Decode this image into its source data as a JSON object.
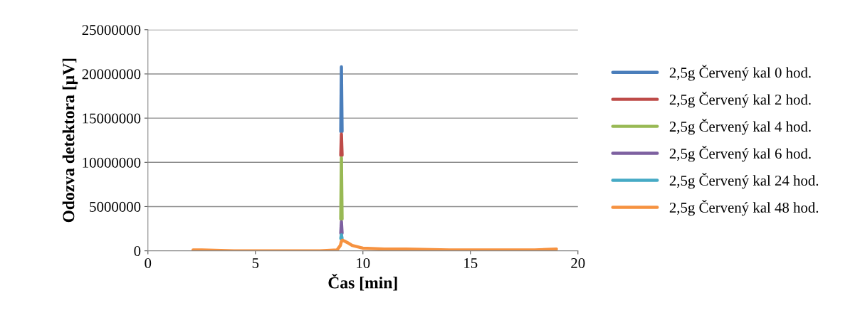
{
  "chart_data": {
    "type": "line",
    "xlabel": "Čas [min]",
    "ylabel": "Odozva detektora [µV]",
    "xlim": [
      0,
      20
    ],
    "xticks": [
      0,
      5,
      10,
      15,
      20
    ],
    "ylim": [
      0,
      25000000
    ],
    "yticks": [
      0,
      5000000,
      10000000,
      15000000,
      20000000,
      25000000
    ],
    "grid": "y",
    "legend": "right",
    "marker": "none",
    "line_style": "solid",
    "x": [
      2.1,
      2.5,
      4,
      6,
      8,
      8.8,
      8.95,
      9.0,
      9.05,
      9.15,
      9.3,
      9.5,
      10,
      11,
      12,
      14,
      16,
      18,
      19
    ],
    "series": [
      {
        "name": "2,5g Červený kal 0 hod.",
        "color": "#4a7ebb",
        "x": [
          8.97,
          9.0,
          9.03
        ],
        "values": [
          13500000,
          20800000,
          13500000
        ]
      },
      {
        "name": "2,5g Červený kal 2 hod.",
        "color": "#be4b48",
        "x": [
          8.97,
          9.0,
          9.03
        ],
        "values": [
          10800000,
          13200000,
          10800000
        ]
      },
      {
        "name": "2,5g Červený kal 4 hod.",
        "color": "#98b954",
        "x": [
          8.97,
          9.0,
          9.03
        ],
        "values": [
          3600000,
          10500000,
          3600000
        ]
      },
      {
        "name": "2,5g Červený kal 6 hod.",
        "color": "#7d60a0",
        "x": [
          8.97,
          9.0,
          9.03
        ],
        "values": [
          2000000,
          3300000,
          2000000
        ]
      },
      {
        "name": "2,5g Červený kal 24 hod.",
        "color": "#46aac5",
        "x": [
          8.97,
          9.0,
          9.03
        ],
        "values": [
          1400000,
          1800000,
          1400000
        ]
      },
      {
        "name": "2,5g Červený kal 48 hod.",
        "color": "#f69240",
        "values": [
          100000,
          100000,
          0,
          0,
          0,
          100000,
          600000,
          1100000,
          1200000,
          1100000,
          900000,
          600000,
          300000,
          200000,
          200000,
          100000,
          100000,
          100000,
          200000
        ]
      }
    ]
  }
}
